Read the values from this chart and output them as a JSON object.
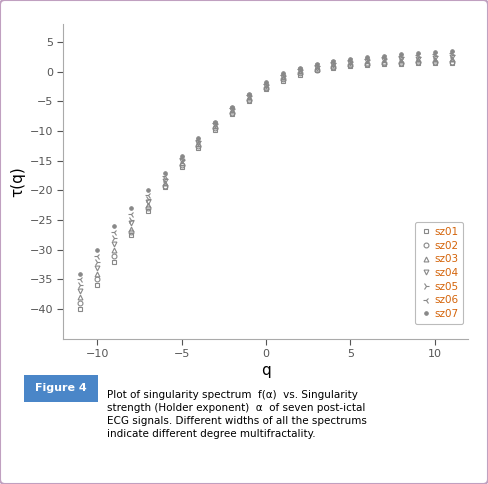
{
  "title": "",
  "xlabel": "q",
  "ylabel": "τ(q)",
  "xlim": [
    -12,
    12
  ],
  "ylim": [
    -45,
    8
  ],
  "xticks": [
    -10,
    -5,
    0,
    5,
    10
  ],
  "yticks": [
    -40,
    -35,
    -30,
    -25,
    -20,
    -15,
    -10,
    -5,
    0,
    5
  ],
  "legend_labels": [
    "sz01",
    "sz02",
    "sz03",
    "sz04",
    "sz05",
    "sz06",
    "sz07"
  ],
  "legend_text_color": "#d4640a",
  "marker_color": "#888888",
  "background_color": "#ffffff",
  "caption_label": "Figure 4",
  "caption_text": "Plot of singularity spectrum  f(α)  vs. Singularity strength (Holder exponent)  α  of seven post-ictal ECG signals. Different widths of all the spectrums indicate different degree multifractality.",
  "series": {
    "sz01": {
      "marker": "s",
      "markersize": 3.5,
      "q": [
        -11,
        -10,
        -9,
        -8,
        -7,
        -6,
        -5,
        -4,
        -3,
        -2,
        -1,
        0,
        1,
        2,
        3,
        4,
        5,
        6,
        7,
        8,
        9,
        10,
        11
      ],
      "tau": [
        -40,
        -36,
        -32,
        -27.5,
        -23.5,
        -19.5,
        -16.0,
        -12.8,
        -9.8,
        -7.2,
        -4.9,
        -3.0,
        -1.5,
        -0.5,
        0.2,
        0.7,
        1.0,
        1.2,
        1.3,
        1.35,
        1.4,
        1.45,
        1.5
      ]
    },
    "sz02": {
      "marker": "o",
      "markersize": 3.5,
      "q": [
        -11,
        -10,
        -9,
        -8,
        -7,
        -6,
        -5,
        -4,
        -3,
        -2,
        -1,
        0,
        1,
        2,
        3,
        4,
        5,
        6,
        7,
        8,
        9,
        10,
        11
      ],
      "tau": [
        -39,
        -35,
        -31,
        -27.0,
        -23.0,
        -19.2,
        -15.7,
        -12.5,
        -9.5,
        -7.0,
        -4.7,
        -2.8,
        -1.3,
        -0.3,
        0.3,
        0.8,
        1.05,
        1.25,
        1.4,
        1.5,
        1.55,
        1.6,
        1.65
      ]
    },
    "sz03": {
      "marker": "^",
      "markersize": 3.5,
      "q": [
        -11,
        -10,
        -9,
        -8,
        -7,
        -6,
        -5,
        -4,
        -3,
        -2,
        -1,
        0,
        1,
        2,
        3,
        4,
        5,
        6,
        7,
        8,
        9,
        10,
        11
      ],
      "tau": [
        -38,
        -34,
        -30,
        -26.5,
        -22.5,
        -18.8,
        -15.4,
        -12.2,
        -9.2,
        -6.7,
        -4.5,
        -2.6,
        -1.1,
        -0.1,
        0.5,
        1.0,
        1.25,
        1.5,
        1.65,
        1.8,
        1.9,
        2.0,
        2.1
      ]
    },
    "sz04": {
      "marker": "v",
      "markersize": 3.5,
      "q": [
        -11,
        -10,
        -9,
        -8,
        -7,
        -6,
        -5,
        -4,
        -3,
        -2,
        -1,
        0,
        1,
        2,
        3,
        4,
        5,
        6,
        7,
        8,
        9,
        10,
        11
      ],
      "tau": [
        -37,
        -33,
        -29,
        -25.5,
        -22.0,
        -18.4,
        -15.1,
        -12.0,
        -9.0,
        -6.5,
        -4.3,
        -2.4,
        -0.9,
        0.1,
        0.7,
        1.2,
        1.5,
        1.75,
        1.95,
        2.1,
        2.2,
        2.3,
        2.45
      ]
    },
    "sz05": {
      "marker": "4",
      "markersize": 4.5,
      "q": [
        -11,
        -10,
        -9,
        -8,
        -7,
        -6,
        -5,
        -4,
        -3,
        -2,
        -1,
        0,
        1,
        2,
        3,
        4,
        5,
        6,
        7,
        8,
        9,
        10,
        11
      ],
      "tau": [
        -36,
        -32,
        -28,
        -25.0,
        -21.5,
        -18.0,
        -14.8,
        -11.7,
        -8.8,
        -6.3,
        -4.1,
        -2.2,
        -0.7,
        0.3,
        0.9,
        1.4,
        1.7,
        2.0,
        2.2,
        2.4,
        2.55,
        2.65,
        2.8
      ]
    },
    "sz06": {
      "marker": "3",
      "markersize": 4.5,
      "q": [
        -11,
        -10,
        -9,
        -8,
        -7,
        -6,
        -5,
        -4,
        -3,
        -2,
        -1,
        0,
        1,
        2,
        3,
        4,
        5,
        6,
        7,
        8,
        9,
        10,
        11
      ],
      "tau": [
        -35,
        -31,
        -27,
        -24.0,
        -20.8,
        -17.5,
        -14.5,
        -11.5,
        -8.6,
        -6.1,
        -3.9,
        -2.0,
        -0.5,
        0.5,
        1.1,
        1.6,
        1.9,
        2.2,
        2.45,
        2.65,
        2.8,
        2.95,
        3.15
      ]
    },
    "sz07": {
      "marker": "o",
      "markersize": 2.5,
      "filled": true,
      "q": [
        -11,
        -10,
        -9,
        -8,
        -7,
        -6,
        -5,
        -4,
        -3,
        -2,
        -1,
        0,
        1,
        2,
        3,
        4,
        5,
        6,
        7,
        8,
        9,
        10,
        11
      ],
      "tau": [
        -34,
        -30,
        -26,
        -23.0,
        -20.0,
        -17.0,
        -14.2,
        -11.2,
        -8.4,
        -5.9,
        -3.7,
        -1.8,
        -0.3,
        0.7,
        1.3,
        1.8,
        2.15,
        2.45,
        2.7,
        2.95,
        3.1,
        3.3,
        3.5
      ]
    }
  }
}
